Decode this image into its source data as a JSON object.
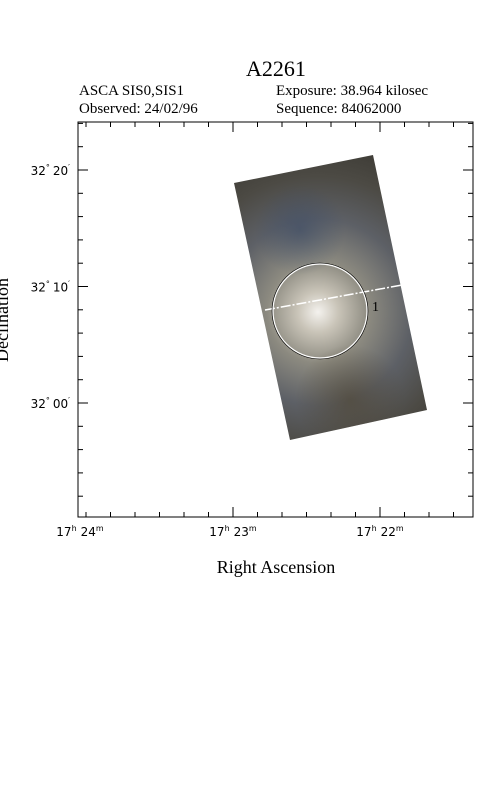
{
  "header": {
    "title": "A2261",
    "left": [
      "ASCA SIS0,SIS1",
      "Observed: 24/02/96"
    ],
    "right": [
      "Exposure: 38.964 kilosec",
      "Sequence: 84062000"
    ]
  },
  "plot": {
    "x_label": "Right Ascension",
    "y_label": "Declination",
    "x_ticks": [
      {
        "hours": "17",
        "h": "h",
        "minutes": "24",
        "m": "m"
      },
      {
        "hours": "17",
        "h": "h",
        "minutes": "23",
        "m": "m"
      },
      {
        "hours": "17",
        "h": "h",
        "minutes": "22",
        "m": "m"
      }
    ],
    "y_ticks": [
      {
        "deg": "32",
        "d": "°",
        "arcmin": "20",
        "a": "′"
      },
      {
        "deg": "32",
        "d": "°",
        "arcmin": "10",
        "a": "′"
      },
      {
        "deg": "32",
        "d": "°",
        "arcmin": "00",
        "a": "′"
      }
    ],
    "source_label": "1"
  }
}
